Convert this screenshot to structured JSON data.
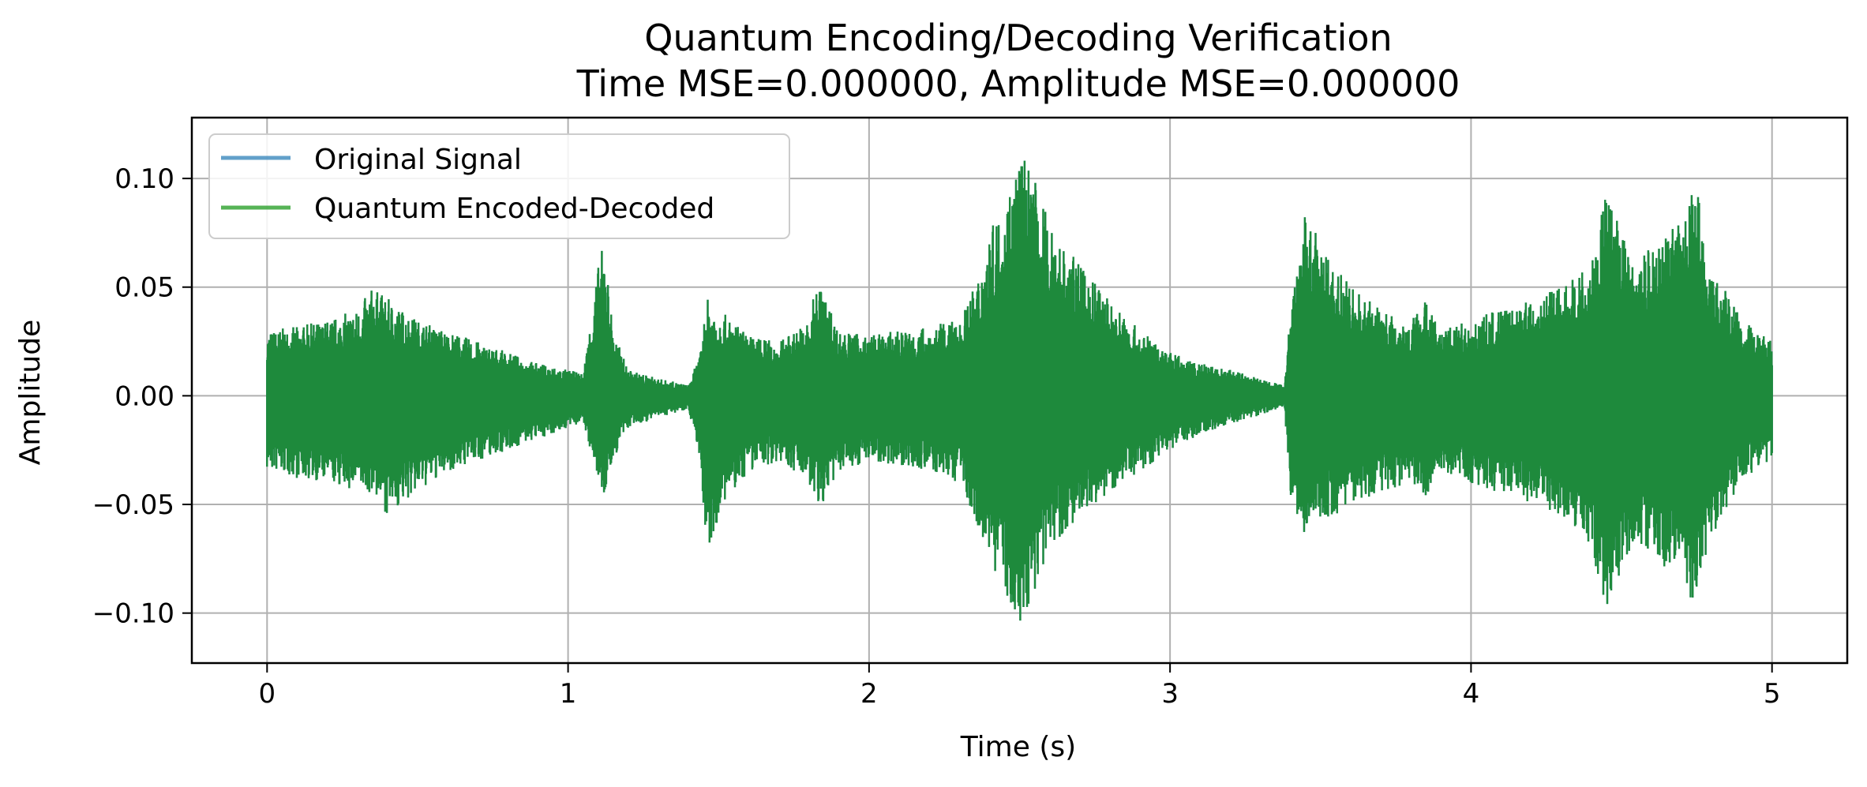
{
  "chart_data": {
    "type": "line",
    "title": "Quantum Encoding/Decoding Verification",
    "subtitle": "Time MSE=0.000000, Amplitude MSE=0.000000",
    "xlabel": "Time (s)",
    "ylabel": "Amplitude",
    "xlim": [
      -0.25,
      5.25
    ],
    "ylim": [
      -0.123,
      0.128
    ],
    "x_ticks": [
      0,
      1,
      2,
      3,
      4,
      5
    ],
    "x_tick_labels": [
      "0",
      "1",
      "2",
      "3",
      "4",
      "5"
    ],
    "y_ticks": [
      0.1,
      0.05,
      0.0,
      -0.05,
      -0.1
    ],
    "y_tick_labels": [
      "0.10",
      "0.05",
      "0.00",
      "−0.05",
      "−0.10"
    ],
    "grid": true,
    "legend": {
      "placement": "top-left"
    },
    "x_range": [
      0,
      5
    ],
    "envelope": {
      "t": [
        0,
        0.1,
        0.2,
        0.3,
        0.35,
        0.4,
        0.5,
        0.6,
        0.7,
        0.8,
        0.9,
        1.0,
        1.05,
        1.1,
        1.12,
        1.15,
        1.2,
        1.3,
        1.4,
        1.44,
        1.46,
        1.5,
        1.6,
        1.7,
        1.8,
        1.83,
        1.9,
        2.0,
        2.1,
        2.2,
        2.3,
        2.35,
        2.4,
        2.45,
        2.5,
        2.55,
        2.6,
        2.7,
        2.8,
        2.9,
        3.0,
        3.1,
        3.2,
        3.3,
        3.38,
        3.4,
        3.45,
        3.5,
        3.6,
        3.7,
        3.8,
        3.85,
        3.9,
        4.0,
        4.1,
        4.2,
        4.3,
        4.4,
        4.45,
        4.5,
        4.55,
        4.6,
        4.7,
        4.75,
        4.8,
        4.9,
        5.0
      ],
      "upper": [
        0.03,
        0.032,
        0.035,
        0.04,
        0.05,
        0.045,
        0.035,
        0.03,
        0.025,
        0.02,
        0.015,
        0.012,
        0.01,
        0.06,
        0.072,
        0.03,
        0.012,
        0.008,
        0.005,
        0.02,
        0.045,
        0.04,
        0.028,
        0.025,
        0.035,
        0.055,
        0.03,
        0.028,
        0.03,
        0.032,
        0.035,
        0.05,
        0.075,
        0.09,
        0.115,
        0.1,
        0.08,
        0.06,
        0.045,
        0.03,
        0.02,
        0.015,
        0.012,
        0.008,
        0.005,
        0.04,
        0.085,
        0.07,
        0.05,
        0.04,
        0.035,
        0.045,
        0.03,
        0.035,
        0.04,
        0.045,
        0.05,
        0.06,
        0.095,
        0.075,
        0.06,
        0.07,
        0.08,
        0.1,
        0.06,
        0.035,
        0.025
      ],
      "lower": [
        -0.035,
        -0.038,
        -0.04,
        -0.045,
        -0.045,
        -0.055,
        -0.045,
        -0.035,
        -0.03,
        -0.025,
        -0.02,
        -0.015,
        -0.012,
        -0.04,
        -0.048,
        -0.03,
        -0.015,
        -0.01,
        -0.006,
        -0.03,
        -0.08,
        -0.055,
        -0.035,
        -0.03,
        -0.04,
        -0.055,
        -0.035,
        -0.03,
        -0.032,
        -0.035,
        -0.04,
        -0.055,
        -0.075,
        -0.09,
        -0.11,
        -0.09,
        -0.07,
        -0.055,
        -0.045,
        -0.035,
        -0.025,
        -0.018,
        -0.013,
        -0.009,
        -0.005,
        -0.045,
        -0.07,
        -0.06,
        -0.05,
        -0.045,
        -0.04,
        -0.05,
        -0.035,
        -0.04,
        -0.045,
        -0.05,
        -0.055,
        -0.07,
        -0.1,
        -0.08,
        -0.065,
        -0.075,
        -0.085,
        -0.1,
        -0.065,
        -0.04,
        -0.03
      ]
    },
    "series": [
      {
        "name": "Original Signal",
        "color": "#1f77b4"
      },
      {
        "name": "Quantum Encoded-Decoded",
        "color": "#2ca02c"
      }
    ],
    "overlap_color": "#1e8a3c"
  }
}
